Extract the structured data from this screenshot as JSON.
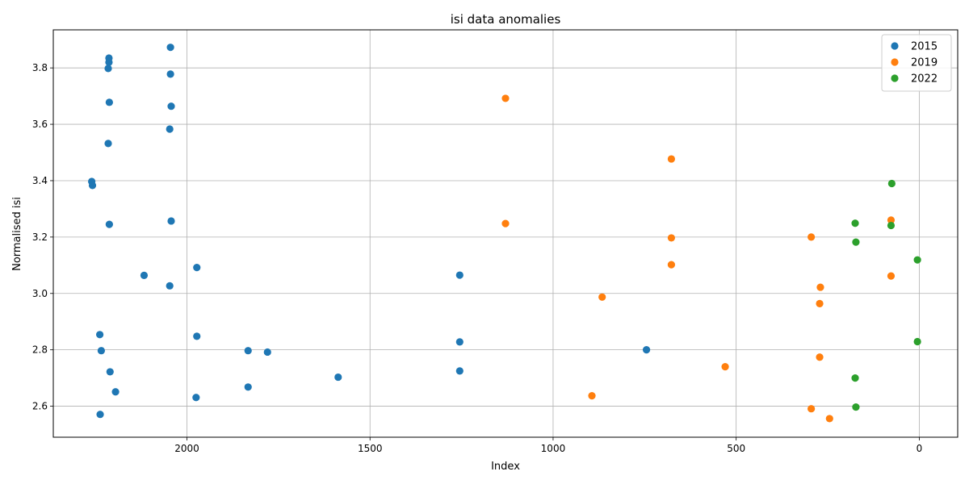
{
  "chart_data": {
    "type": "scatter",
    "title": "isi data anomalies",
    "xlabel": "Index",
    "ylabel": "Normalised isi",
    "xlim": [
      2365,
      -105
    ],
    "ylim": [
      2.49,
      3.935
    ],
    "x_inverted": true,
    "xticks": [
      2000,
      1500,
      1000,
      500,
      0
    ],
    "yticks": [
      2.6,
      2.8,
      3.0,
      3.2,
      3.4,
      3.6,
      3.8
    ],
    "grid": true,
    "legend_position": "top-right",
    "series": [
      {
        "name": "2015",
        "color": "#1f77b4",
        "points": [
          [
            2213,
            3.835
          ],
          [
            2213,
            3.82
          ],
          [
            2215,
            3.798
          ],
          [
            2212,
            3.678
          ],
          [
            2215,
            3.532
          ],
          [
            2260,
            3.397
          ],
          [
            2258,
            3.383
          ],
          [
            2212,
            3.245
          ],
          [
            2045,
            3.873
          ],
          [
            2045,
            3.778
          ],
          [
            2043,
            3.664
          ],
          [
            2047,
            3.583
          ],
          [
            2043,
            3.257
          ],
          [
            2047,
            3.027
          ],
          [
            2117,
            3.064
          ],
          [
            1973,
            3.092
          ],
          [
            1973,
            2.848
          ],
          [
            2238,
            2.854
          ],
          [
            2234,
            2.797
          ],
          [
            2210,
            2.722
          ],
          [
            2195,
            2.651
          ],
          [
            2237,
            2.571
          ],
          [
            1975,
            2.631
          ],
          [
            1833,
            2.797
          ],
          [
            1780,
            2.792
          ],
          [
            1833,
            2.668
          ],
          [
            1587,
            2.703
          ],
          [
            1255,
            3.065
          ],
          [
            1255,
            2.828
          ],
          [
            1255,
            2.725
          ],
          [
            745,
            2.8
          ]
        ]
      },
      {
        "name": "2019",
        "color": "#ff7f0e",
        "points": [
          [
            1130,
            3.692
          ],
          [
            1130,
            3.248
          ],
          [
            677,
            3.477
          ],
          [
            677,
            3.197
          ],
          [
            677,
            3.102
          ],
          [
            866,
            2.987
          ],
          [
            894,
            2.637
          ],
          [
            530,
            2.74
          ],
          [
            295,
            3.2
          ],
          [
            295,
            2.591
          ],
          [
            270,
            3.022
          ],
          [
            272,
            2.964
          ],
          [
            272,
            2.774
          ],
          [
            245,
            2.556
          ],
          [
            77,
            3.26
          ],
          [
            77,
            3.062
          ]
        ]
      },
      {
        "name": "2022",
        "color": "#2ca02c",
        "points": [
          [
            75,
            3.39
          ],
          [
            77,
            3.241
          ],
          [
            175,
            3.249
          ],
          [
            173,
            3.182
          ],
          [
            5,
            3.119
          ],
          [
            5,
            2.829
          ],
          [
            175,
            2.7
          ],
          [
            173,
            2.597
          ]
        ]
      }
    ]
  }
}
